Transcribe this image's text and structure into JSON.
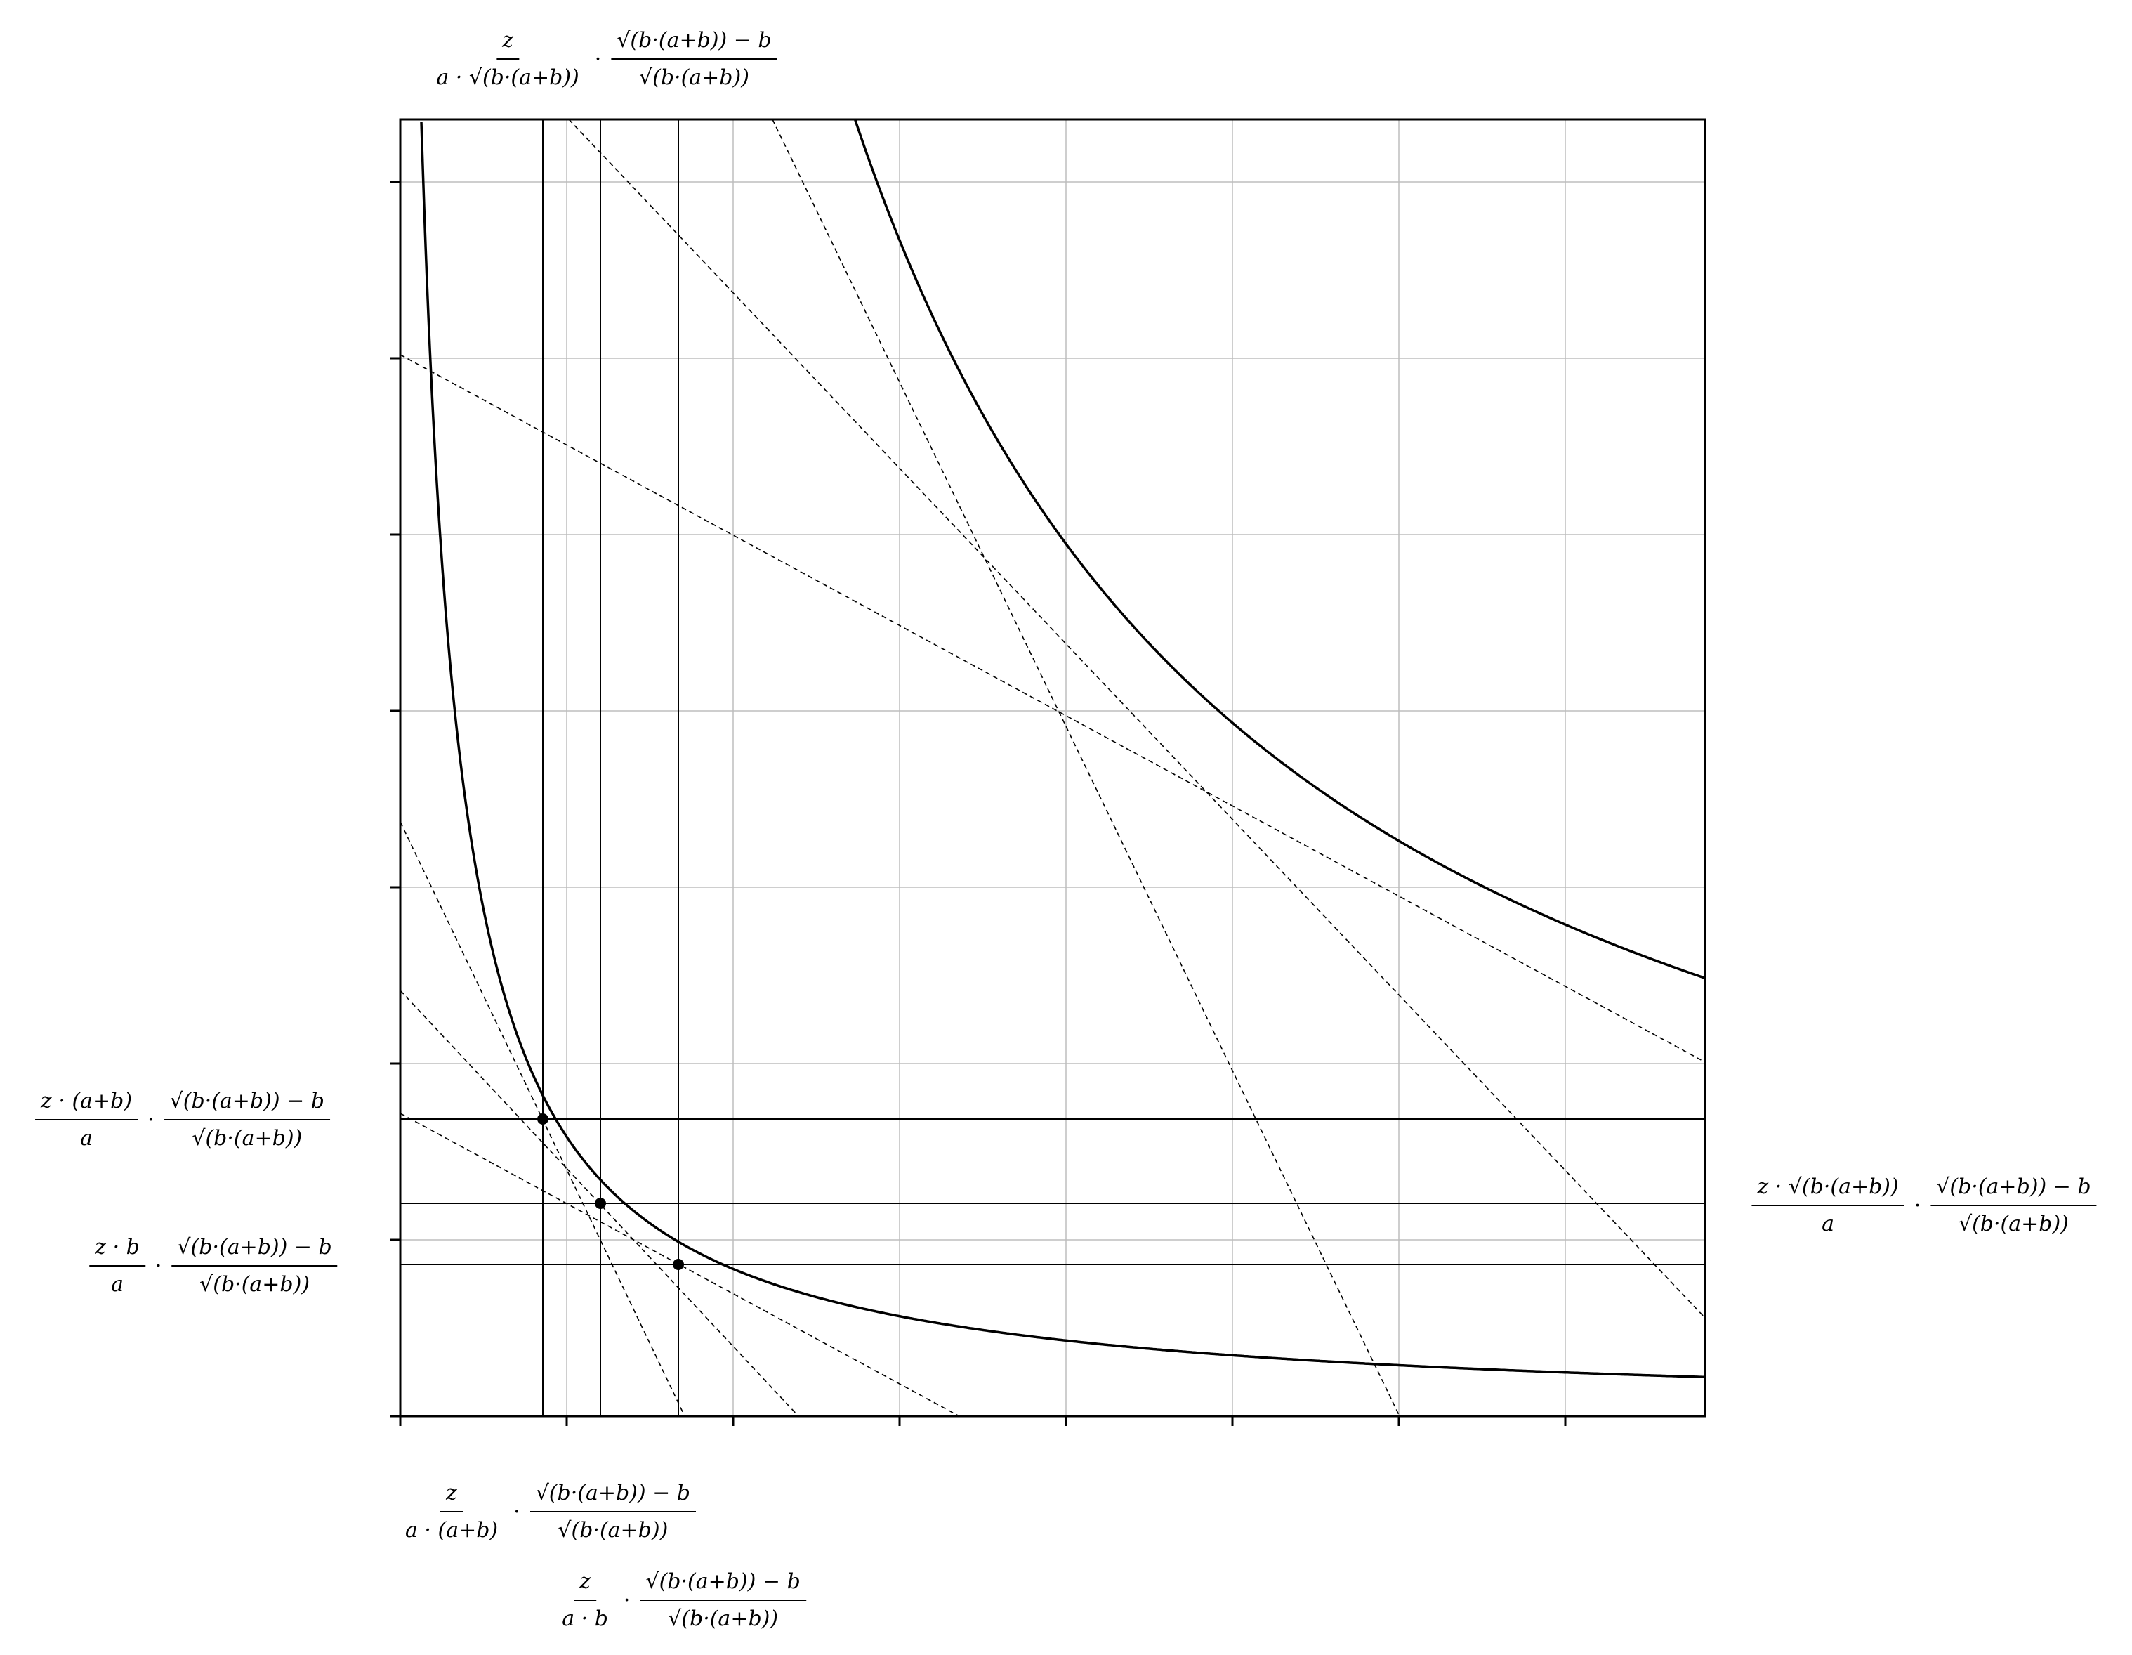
{
  "diagram": {
    "grid": true,
    "lines": {
      "vertical_label_count": 3,
      "horizontal_label_count": 3
    }
  },
  "labels": {
    "top": {
      "left_num": "z",
      "left_den": "a · √(b·(a+b))",
      "dot": "·",
      "right_num": "√(b·(a+b)) − b",
      "right_den": "√(b·(a+b))"
    },
    "left_upper": {
      "left_num": "z · (a+b)",
      "left_den": "a",
      "dot": "·",
      "right_num": "√(b·(a+b)) − b",
      "right_den": "√(b·(a+b))"
    },
    "left_lower": {
      "left_num": "z · b",
      "left_den": "a",
      "dot": "·",
      "right_num": "√(b·(a+b)) − b",
      "right_den": "√(b·(a+b))"
    },
    "right": {
      "left_num": "z · √(b·(a+b))",
      "left_den": "a",
      "dot": "·",
      "right_num": "√(b·(a+b)) − b",
      "right_den": "√(b·(a+b))"
    },
    "bottom_first": {
      "left_num": "z",
      "left_den": "a · (a+b)",
      "dot": "·",
      "right_num": "√(b·(a+b)) − b",
      "right_den": "√(b·(a+b))"
    },
    "bottom_second": {
      "left_num": "z",
      "left_den": "a · b",
      "dot": "·",
      "right_num": "√(b·(a+b)) − b",
      "right_den": "√(b·(a+b))"
    }
  }
}
